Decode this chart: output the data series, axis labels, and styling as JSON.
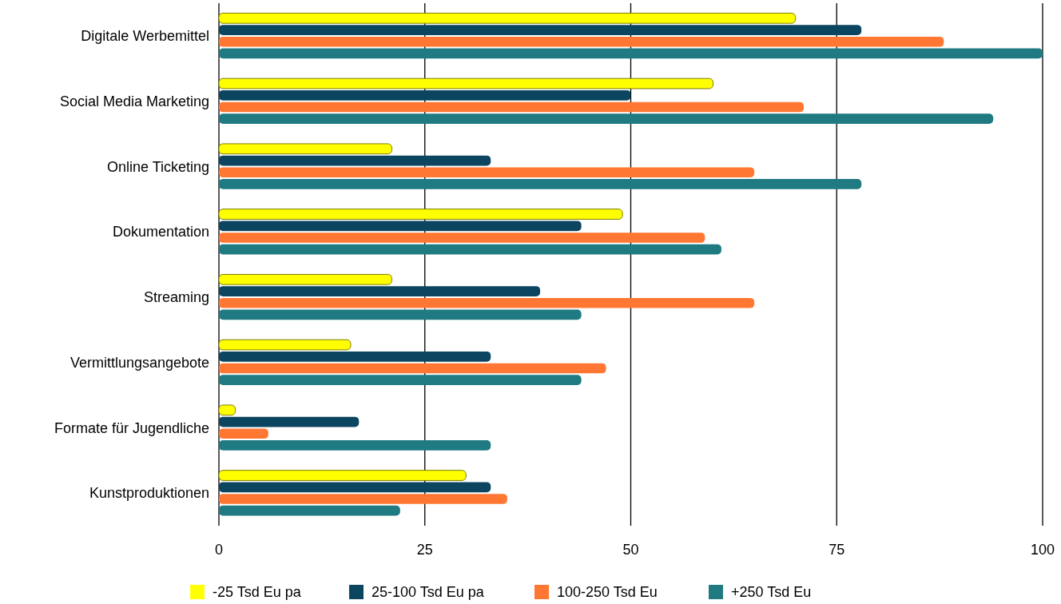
{
  "chart_data": {
    "type": "bar",
    "orientation": "horizontal",
    "categories": [
      "Digitale Werbemittel",
      "Social Media Marketing",
      "Online Ticketing",
      "Dokumentation",
      "Streaming",
      "Vermittlungsangebote",
      "Formate für Jugendliche",
      "Kunstproduktionen"
    ],
    "series": [
      {
        "name": "-25 Tsd Eu pa",
        "color": "#ffff00",
        "values": [
          70,
          60,
          21,
          49,
          21,
          16,
          2,
          30
        ]
      },
      {
        "name": "25-100 Tsd Eu pa",
        "color": "#0b4560",
        "values": [
          78,
          50,
          33,
          44,
          39,
          33,
          17,
          33
        ]
      },
      {
        "name": "100-250 Tsd Eu",
        "color": "#ff7733",
        "values": [
          88,
          71,
          65,
          59,
          65,
          47,
          6,
          35
        ]
      },
      {
        "name": "+250 Tsd Eu",
        "color": "#1f7a82",
        "values": [
          100,
          94,
          78,
          61,
          44,
          44,
          33,
          22
        ]
      }
    ],
    "xlim": [
      0,
      100
    ],
    "xticks": [
      0,
      25,
      50,
      75,
      100
    ],
    "grid": "x",
    "legend": "bottom"
  }
}
